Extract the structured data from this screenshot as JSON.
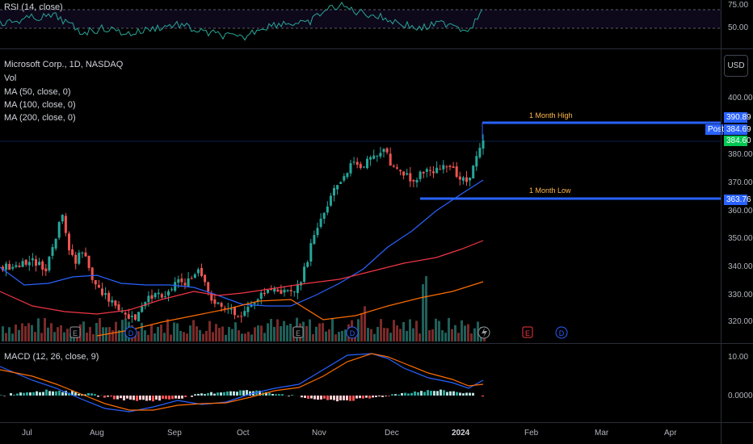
{
  "rsi": {
    "legend": "RSI (14, close)",
    "ticks": [
      "75.00",
      "50.00"
    ]
  },
  "main": {
    "legend": {
      "symbol": "Microsoft Corp., 1D, NASDAQ",
      "vol": "Vol",
      "ma50": "MA (50, close, 0)",
      "ma100": "MA (100, close, 0)",
      "ma200": "MA (200, close, 0)"
    },
    "currency": "USD",
    "ticks": [
      "400.00",
      "380.00",
      "370.00",
      "360.00",
      "350.00",
      "340.00",
      "330.00",
      "320.00"
    ],
    "high_label": "1 Month High",
    "low_label": "1 Month Low",
    "high_value": "390.89",
    "low_value": "363.76",
    "post_label": "Post",
    "post_value": "384.69",
    "last_value": "384.60",
    "event_markers": [
      "E",
      "D",
      "E",
      "D",
      "E",
      "D"
    ],
    "colors": {
      "up": "#26a69a",
      "down": "#ef5350",
      "ma50": "#2962ff",
      "ma100": "#f23645",
      "ma200": "#ff6d00",
      "level": "#2962ff"
    }
  },
  "macd": {
    "legend": "MACD (12, 26, close, 9)",
    "ticks": [
      "10.00",
      "0.0000"
    ]
  },
  "xaxis": {
    "labels": [
      "Jul",
      "Aug",
      "Sep",
      "Oct",
      "Nov",
      "Dec",
      "2024",
      "Feb",
      "Mar",
      "Apr"
    ]
  }
}
